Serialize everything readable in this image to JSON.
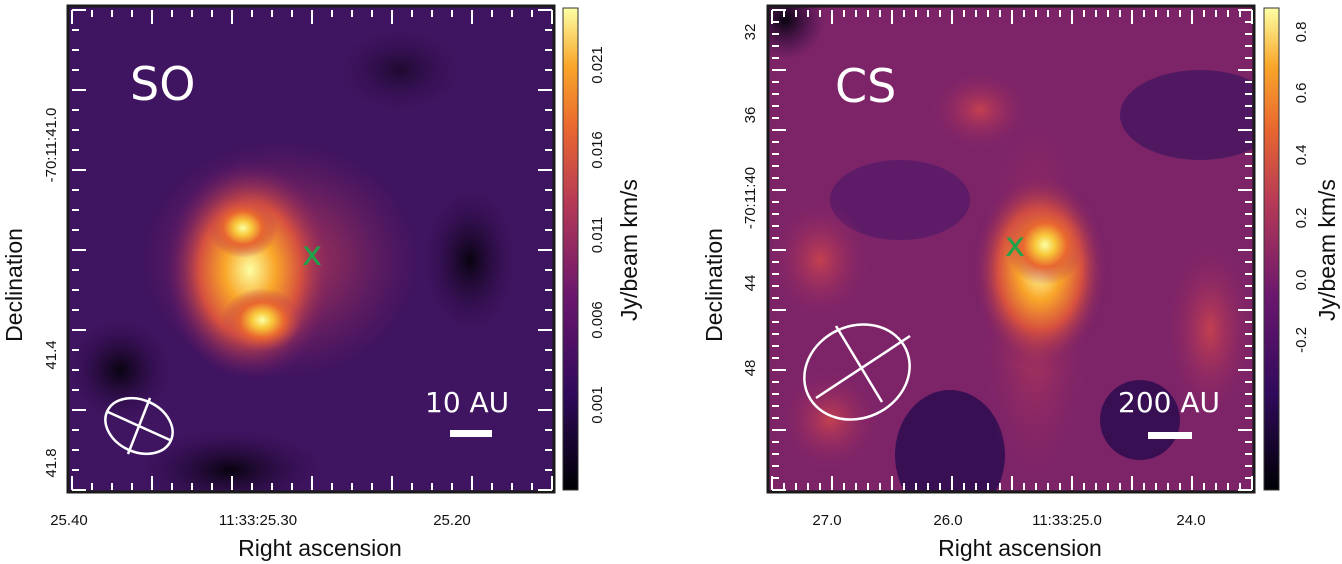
{
  "chart_data": [
    {
      "type": "heatmap",
      "panel_label": "SO",
      "xlabel": "Right ascension",
      "ylabel": "Declination",
      "x_ticks": [
        "25.40",
        "11:33:25.30",
        "25.20"
      ],
      "y_ticks": [
        "-70:11:41.0",
        "41.4",
        "41.8"
      ],
      "colorbar": {
        "label": "Jy/beam km/s",
        "ticks": [
          "0.021",
          "0.016",
          "0.011",
          "0.006",
          "0.001"
        ],
        "colormap": "inferno-like"
      },
      "scale_bar": "10 AU",
      "marker": {
        "symbol": "x",
        "color": "#1fa34a"
      },
      "beam": "ellipse"
    },
    {
      "type": "heatmap",
      "panel_label": "CS",
      "xlabel": "Right ascension",
      "ylabel": "Declination",
      "x_ticks": [
        "27.0",
        "26.0",
        "11:33:25.0",
        "24.0"
      ],
      "y_ticks": [
        "32",
        "36",
        "-70:11:40",
        "44",
        "48"
      ],
      "colorbar": {
        "label": "Jy/beam km/s",
        "ticks": [
          "0.8",
          "0.6",
          "0.4",
          "0.2",
          "0.0",
          "-0.2"
        ],
        "colormap": "inferno-like"
      },
      "scale_bar": "200 AU",
      "marker": {
        "symbol": "x",
        "color": "#1fa34a"
      },
      "beam": "ellipse"
    }
  ]
}
